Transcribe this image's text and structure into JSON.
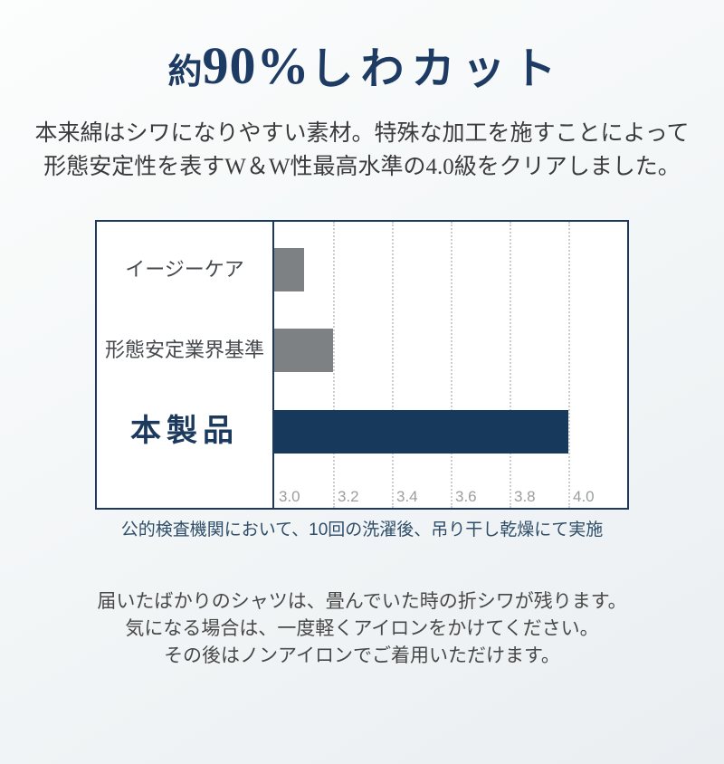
{
  "title": {
    "prefix": "約",
    "number": "90%",
    "suffix": "しわカット",
    "full": "約90%しわカット"
  },
  "intro": {
    "lines": [
      "本来綿はシワになりやすい素材。特殊な加工を施すことによって",
      "形態安定性を表すW＆W性最高水準の4.0級をクリアしました。"
    ]
  },
  "chart_data": {
    "type": "bar",
    "orientation": "horizontal",
    "categories": [
      "イージーケア",
      "形態安定業界基準",
      "本製品"
    ],
    "values": [
      3.1,
      3.2,
      4.0
    ],
    "bar_colors": [
      "#7e8184",
      "#7e8184",
      "#17395c"
    ],
    "emphasized_category_index": 2,
    "xlim": [
      3.0,
      4.2
    ],
    "x_ticks": [
      3.0,
      3.2,
      3.4,
      3.6,
      3.8,
      4.0
    ],
    "x_tick_labels": [
      "3.0",
      "3.2",
      "3.4",
      "3.6",
      "3.8",
      "4.0"
    ],
    "grid": "vertical-dotted",
    "legend": false,
    "caption": "公的検査機関において、10回の洗濯後、吊り干し乾燥にて実施"
  },
  "footer_note": {
    "lines": [
      "届いたばかりのシャツは、畳んでいた時の折シワが残ります。",
      "気になる場合は、一度軽くアイロンをかけてください。",
      "その後はノンアイロンでご着用いただけます。"
    ]
  },
  "colors": {
    "accent_navy": "#1c3a5e",
    "title_navy": "#1e3c63",
    "bar_gray": "#7e8184",
    "bar_navy": "#17395c",
    "caption_blue": "#2e4d68",
    "category_label_gray": "#45484d",
    "tick_gray": "#9b9ea0",
    "gridline_gray": "#cbcdcf",
    "body_text_gray": "#3b3b3d",
    "footer_text_gray": "#484848",
    "chart_background": "#ffffff",
    "page_background_top": "#fcfdfd",
    "page_background_bottom": "#eaeef1"
  }
}
